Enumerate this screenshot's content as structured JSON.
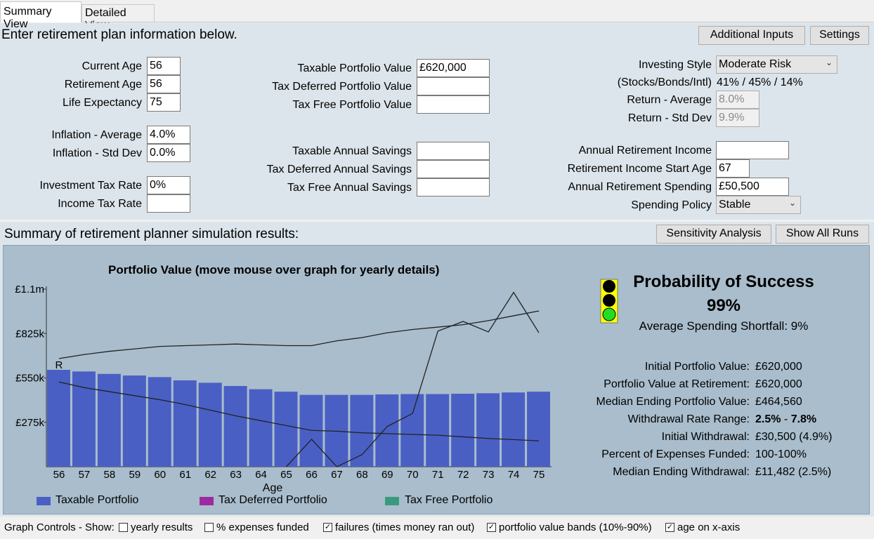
{
  "tabs": [
    {
      "label": "Summary View"
    },
    {
      "label": "Detailed View"
    }
  ],
  "input_section": {
    "heading": "Enter retirement plan information below.",
    "additional_inputs_label": "Additional Inputs",
    "settings_label": "Settings",
    "current_age": {
      "label": "Current Age",
      "value": "56"
    },
    "retirement_age": {
      "label": "Retirement Age",
      "value": "56"
    },
    "life_expectancy": {
      "label": "Life Expectancy",
      "value": "75"
    },
    "inflation_avg": {
      "label": "Inflation - Average",
      "value": "4.0%"
    },
    "inflation_std": {
      "label": "Inflation - Std Dev",
      "value": "0.0%"
    },
    "investment_tax": {
      "label": "Investment Tax Rate",
      "value": "0%"
    },
    "income_tax": {
      "label": "Income Tax Rate",
      "value": ""
    },
    "taxable_portfolio": {
      "label": "Taxable Portfolio Value",
      "value": "£620,000"
    },
    "tax_deferred_portfolio": {
      "label": "Tax Deferred Portfolio Value",
      "value": ""
    },
    "tax_free_portfolio": {
      "label": "Tax Free Portfolio Value",
      "value": ""
    },
    "taxable_savings": {
      "label": "Taxable Annual Savings",
      "value": ""
    },
    "tax_deferred_savings": {
      "label": "Tax Deferred Annual Savings",
      "value": ""
    },
    "tax_free_savings": {
      "label": "Tax Free Annual Savings",
      "value": ""
    },
    "investing_style": {
      "label": "Investing Style",
      "value": "Moderate Risk"
    },
    "allocation": {
      "label": "(Stocks/Bonds/Intl)",
      "value": "41% / 45% / 14%"
    },
    "return_avg": {
      "label": "Return - Average",
      "value": "8.0%"
    },
    "return_std": {
      "label": "Return - Std Dev",
      "value": "9.9%"
    },
    "annual_ret_income": {
      "label": "Annual Retirement Income",
      "value": ""
    },
    "ret_income_start": {
      "label": "Retirement Income Start Age",
      "value": "67"
    },
    "annual_ret_spending": {
      "label": "Annual Retirement Spending",
      "value": "£50,500"
    },
    "spending_policy": {
      "label": "Spending Policy",
      "value": "Stable"
    }
  },
  "results_section": {
    "heading": "Summary of retirement planner simulation results:",
    "sensitivity_label": "Sensitivity Analysis",
    "show_all_runs_label": "Show All Runs",
    "probability_title": "Probability of Success",
    "probability_value": "99%",
    "shortfall": "Average Spending Shortfall: 9%",
    "stats": [
      {
        "label": "Initial Portfolio Value:",
        "value": "£620,000"
      },
      {
        "label": "Portfolio Value at Retirement:",
        "value": "£620,000"
      },
      {
        "label": "Median Ending Portfolio Value:",
        "value": "£464,560"
      },
      {
        "label": "Withdrawal Rate Range:",
        "value_bold_1": "2.5%",
        "value_sep": " - ",
        "value_bold_2": "7.8%"
      },
      {
        "label": "Initial Withdrawal:",
        "value": "£30,500 (4.9%)"
      },
      {
        "label": "Percent of Expenses Funded:",
        "value": "100-100%"
      },
      {
        "label": "Median Ending Withdrawal:",
        "value": "£11,482 (2.5%)"
      }
    ],
    "legend": [
      {
        "label": "Taxable Portfolio",
        "color": "#4a5fc4"
      },
      {
        "label": "Tax Deferred Portfolio",
        "color": "#9c2aa0"
      },
      {
        "label": "Tax Free Portfolio",
        "color": "#3a9a80"
      }
    ]
  },
  "chart_data": {
    "type": "bar",
    "title": "Portfolio Value  (move mouse over graph for yearly details)",
    "xlabel": "Age",
    "ylabel": "",
    "y_tick_labels": [
      "£1.1m",
      "£825k",
      "£550k",
      "£275k"
    ],
    "y_tick_values": [
      1100000,
      825000,
      550000,
      275000
    ],
    "ylim": [
      0,
      1100000
    ],
    "categories": [
      "56",
      "57",
      "58",
      "59",
      "60",
      "61",
      "62",
      "63",
      "64",
      "65",
      "66",
      "67",
      "68",
      "69",
      "70",
      "71",
      "72",
      "73",
      "74",
      "75"
    ],
    "retirement_marker": "R",
    "series": [
      {
        "name": "Taxable Portfolio",
        "values": [
          600000,
          590000,
          575000,
          565000,
          555000,
          535000,
          520000,
          500000,
          480000,
          465000,
          445000,
          445000,
          445000,
          448000,
          450000,
          450000,
          452000,
          455000,
          460000,
          465000
        ]
      },
      {
        "name": "Portfolio value band 90%",
        "values": [
          670000,
          695000,
          715000,
          730000,
          745000,
          750000,
          755000,
          760000,
          755000,
          750000,
          750000,
          780000,
          800000,
          830000,
          850000,
          865000,
          880000,
          905000,
          935000,
          965000
        ]
      },
      {
        "name": "Portfolio value band 10%",
        "values": [
          525000,
          490000,
          465000,
          440000,
          415000,
          385000,
          350000,
          315000,
          285000,
          255000,
          225000,
          220000,
          210000,
          205000,
          200000,
          195000,
          185000,
          175000,
          168000,
          160000
        ]
      },
      {
        "name": "Failures",
        "values": [
          null,
          null,
          null,
          null,
          null,
          null,
          null,
          null,
          null,
          0,
          170000,
          0,
          75000,
          250000,
          330000,
          840000,
          900000,
          835000,
          1080000,
          830000
        ]
      }
    ]
  },
  "graph_controls": {
    "label": "Graph Controls - Show:",
    "items": [
      {
        "label": "yearly results",
        "checked": false
      },
      {
        "label": "% expenses funded",
        "checked": false
      },
      {
        "label": "failures (times money ran out)",
        "checked": true
      },
      {
        "label": "portfolio value bands (10%-90%)",
        "checked": true
      },
      {
        "label": "age on x-axis",
        "checked": true
      }
    ]
  }
}
